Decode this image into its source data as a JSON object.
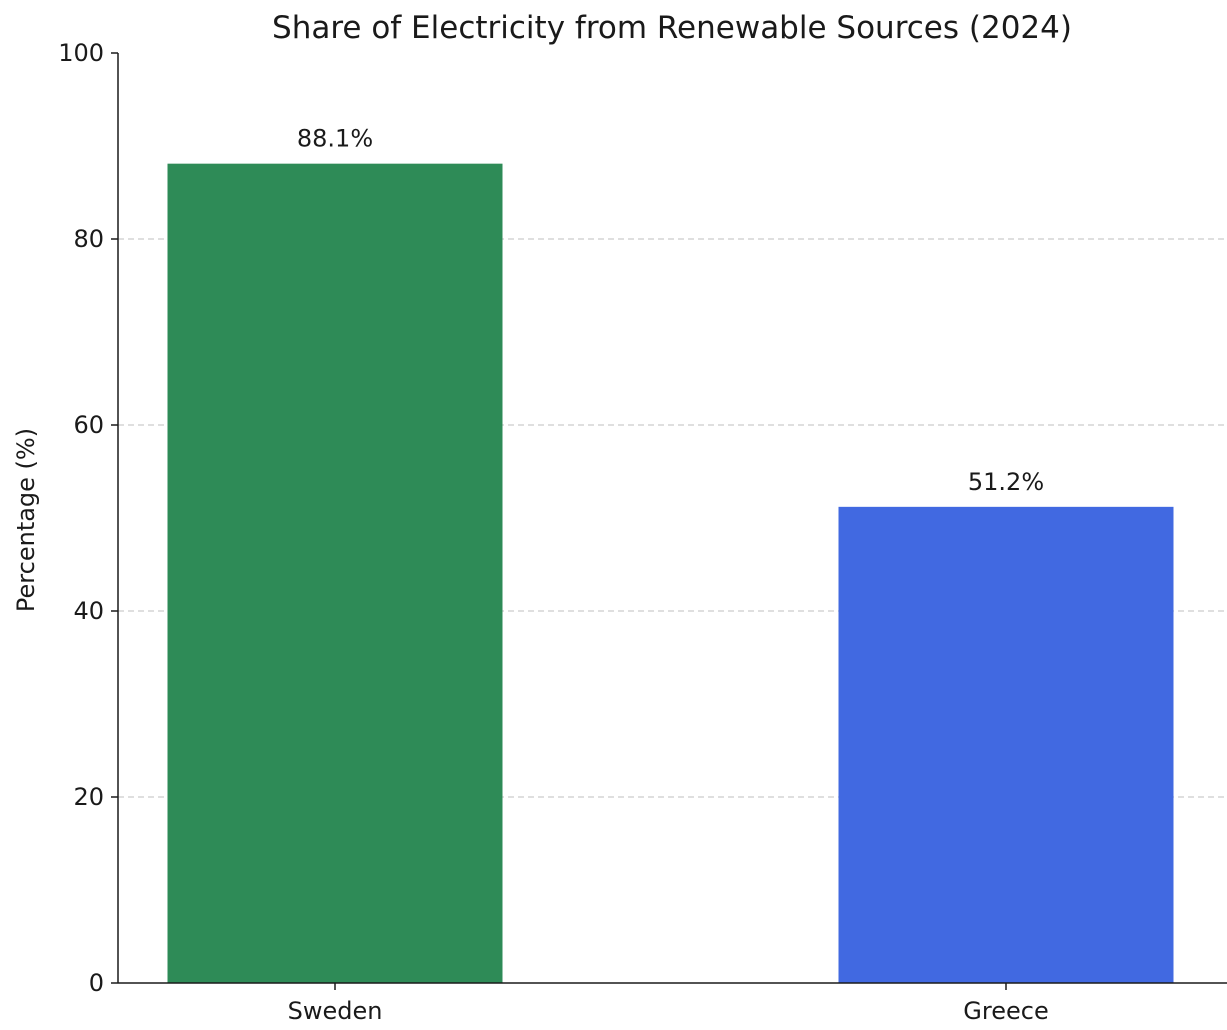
{
  "chart_data": {
    "type": "bar",
    "title": "Share of Electricity from Renewable Sources (2024)",
    "xlabel": "",
    "ylabel": "Percentage (%)",
    "categories": [
      "Sweden",
      "Greece"
    ],
    "values": [
      88.1,
      51.2
    ],
    "data_labels": [
      "88.1%",
      "51.2%"
    ],
    "colors": [
      "#2e8b57",
      "#4169e1"
    ],
    "ylim": [
      0,
      100
    ],
    "yticks": [
      0,
      20,
      40,
      60,
      80,
      100
    ],
    "ytick_labels": [
      "0",
      "20",
      "40",
      "60",
      "80",
      "100"
    ],
    "grid": "y-dashed",
    "grid_color": "#cccccc",
    "legend": "none"
  }
}
